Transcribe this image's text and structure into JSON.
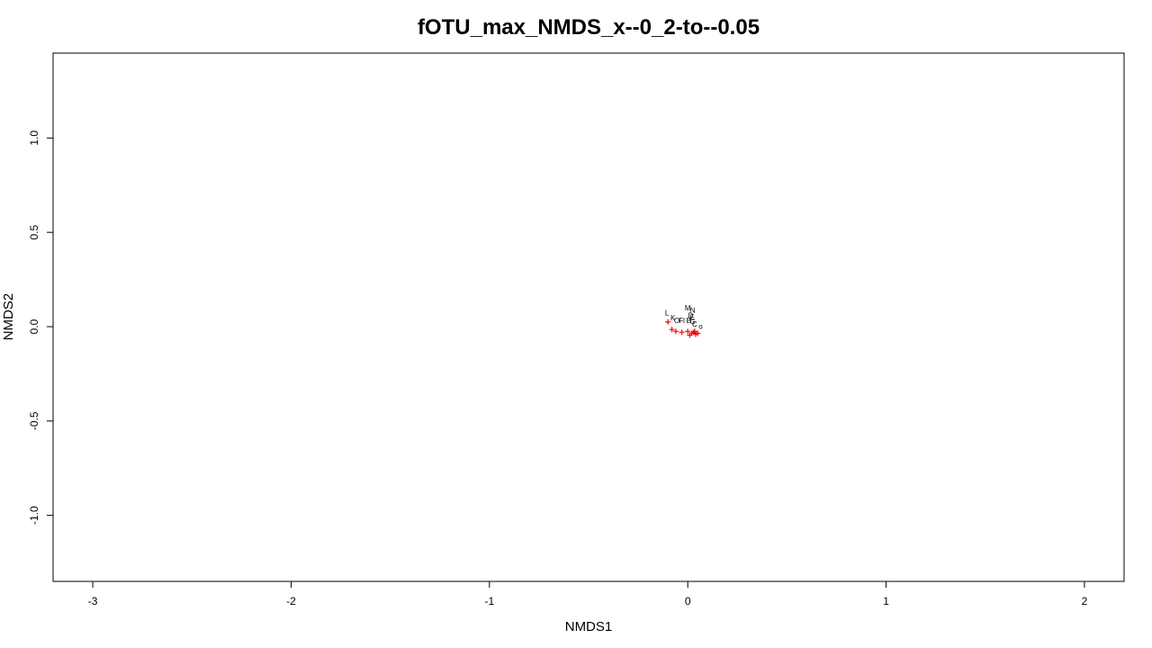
{
  "chart_data": {
    "type": "scatter",
    "title": "fOTU_max_NMDS_x--0_2-to--0.05",
    "xlabel": "NMDS1",
    "ylabel": "NMDS2",
    "xlim": [
      -3.2,
      2.2
    ],
    "ylim": [
      -1.35,
      1.45
    ],
    "x_ticks": [
      -3,
      -2,
      -1,
      0,
      1,
      2
    ],
    "x_tick_labels": [
      "-3",
      "-2",
      "-1",
      "0",
      "1",
      "2"
    ],
    "y_ticks": [
      -1.0,
      -0.5,
      0.0,
      0.5,
      1.0
    ],
    "y_tick_labels": [
      "-1.0",
      "-0.5",
      "0.0",
      "0.5",
      "1.0"
    ],
    "grid": false,
    "marker": "+",
    "marker_color": "#ff0000",
    "points": [
      {
        "x": -0.1,
        "y": 0.025
      },
      {
        "x": -0.08,
        "y": -0.015
      },
      {
        "x": -0.06,
        "y": -0.025
      },
      {
        "x": -0.03,
        "y": -0.03
      },
      {
        "x": 0.0,
        "y": -0.025
      },
      {
        "x": 0.01,
        "y": -0.045
      },
      {
        "x": 0.02,
        "y": -0.035
      },
      {
        "x": 0.03,
        "y": -0.03
      },
      {
        "x": 0.04,
        "y": -0.04
      },
      {
        "x": 0.05,
        "y": -0.035
      },
      {
        "x": 0.035,
        "y": -0.025
      }
    ],
    "labels": [
      {
        "text": "L",
        "x": -0.105,
        "y": 0.06
      },
      {
        "text": "K",
        "x": -0.075,
        "y": 0.033
      },
      {
        "text": "O",
        "x": -0.055,
        "y": 0.02
      },
      {
        "text": "Fl",
        "x": -0.03,
        "y": 0.02
      },
      {
        "text": "M",
        "x": 0.0,
        "y": 0.085
      },
      {
        "text": "N",
        "x": 0.025,
        "y": 0.075
      },
      {
        "text": "D",
        "x": 0.015,
        "y": 0.045
      },
      {
        "text": "E",
        "x": 0.022,
        "y": 0.035
      },
      {
        "text": "B",
        "x": 0.005,
        "y": 0.018
      },
      {
        "text": "G",
        "x": 0.025,
        "y": 0.015
      },
      {
        "text": "C",
        "x": 0.035,
        "y": 0.0
      },
      {
        "text": "o",
        "x": 0.065,
        "y": -0.012
      }
    ]
  }
}
